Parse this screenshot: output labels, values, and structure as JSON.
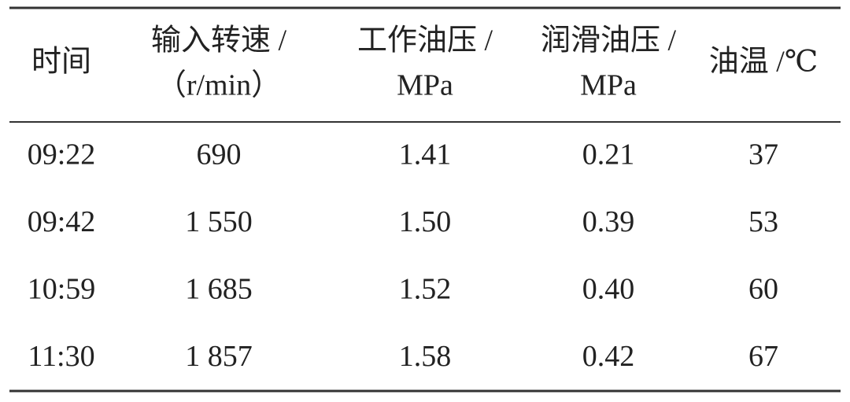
{
  "table": {
    "header": [
      [
        "时间"
      ],
      [
        "输入转速 /",
        "（r/min）"
      ],
      [
        "工作油压 /",
        "MPa"
      ],
      [
        "润滑油压 /",
        "MPa"
      ],
      [
        "油温 /℃"
      ]
    ],
    "rows": [
      [
        "09:22",
        "690",
        "1.41",
        "0.21",
        "37"
      ],
      [
        "09:42",
        "1 550",
        "1.50",
        "0.39",
        "53"
      ],
      [
        "10:59",
        "1 685",
        "1.52",
        "0.40",
        "60"
      ],
      [
        "11:30",
        "1 857",
        "1.58",
        "0.42",
        "67"
      ]
    ]
  }
}
